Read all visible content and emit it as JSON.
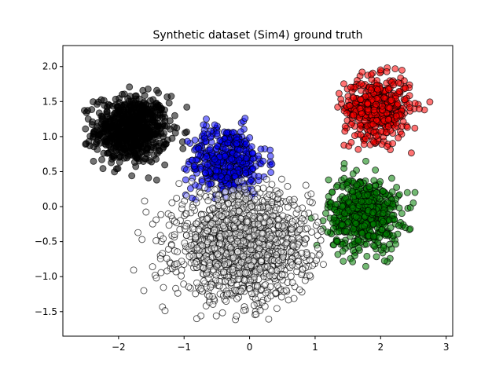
{
  "chart_data": {
    "type": "scatter",
    "title": "Synthetic dataset (Sim4)  ground truth",
    "xlabel": "",
    "ylabel": "",
    "xlim": [
      -2.85,
      3.1
    ],
    "ylim": [
      -1.85,
      2.3
    ],
    "xticks": [
      {
        "value": -2,
        "label": "−2"
      },
      {
        "value": -1,
        "label": "−1"
      },
      {
        "value": 0,
        "label": "0"
      },
      {
        "value": 1,
        "label": "1"
      },
      {
        "value": 2,
        "label": "2"
      },
      {
        "value": 3,
        "label": "3"
      }
    ],
    "yticks": [
      {
        "value": -1.5,
        "label": "−1.5"
      },
      {
        "value": -1.0,
        "label": "−1.0"
      },
      {
        "value": -0.5,
        "label": "−0.5"
      },
      {
        "value": 0.0,
        "label": "0.0"
      },
      {
        "value": 0.5,
        "label": "0.5"
      },
      {
        "value": 1.0,
        "label": "1.0"
      },
      {
        "value": 1.5,
        "label": "1.5"
      },
      {
        "value": 2.0,
        "label": "2.0"
      }
    ],
    "grid": false,
    "legend": "none",
    "clusters": [
      {
        "color": "#000000",
        "fill_opacity": 0.55,
        "center": [
          -1.8,
          1.1
        ],
        "spread": [
          0.28,
          0.24
        ],
        "count": 700,
        "range_x": [
          -2.7,
          -0.9
        ],
        "range_y": [
          0.35,
          1.75
        ]
      },
      {
        "color": "#0000ff",
        "fill_opacity": 0.5,
        "center": [
          -0.35,
          0.65
        ],
        "spread": [
          0.3,
          0.25
        ],
        "count": 450,
        "range_x": [
          -1.0,
          0.4
        ],
        "range_y": [
          0.1,
          1.3
        ]
      },
      {
        "color": "#ff0000",
        "fill_opacity": 0.55,
        "center": [
          1.95,
          1.4
        ],
        "spread": [
          0.25,
          0.22
        ],
        "count": 500,
        "range_x": [
          1.3,
          2.8
        ],
        "range_y": [
          0.6,
          2.15
        ]
      },
      {
        "color": "#008000",
        "fill_opacity": 0.55,
        "center": [
          1.75,
          -0.1
        ],
        "spread": [
          0.27,
          0.26
        ],
        "count": 600,
        "range_x": [
          0.9,
          2.6
        ],
        "range_y": [
          -0.9,
          0.65
        ]
      },
      {
        "color": "#ffffff",
        "fill_opacity": 0.4,
        "center": [
          -0.1,
          -0.55
        ],
        "spread": [
          0.5,
          0.38
        ],
        "count": 1500,
        "range_x": [
          -1.9,
          1.15
        ],
        "range_y": [
          -1.65,
          0.4
        ]
      }
    ]
  }
}
